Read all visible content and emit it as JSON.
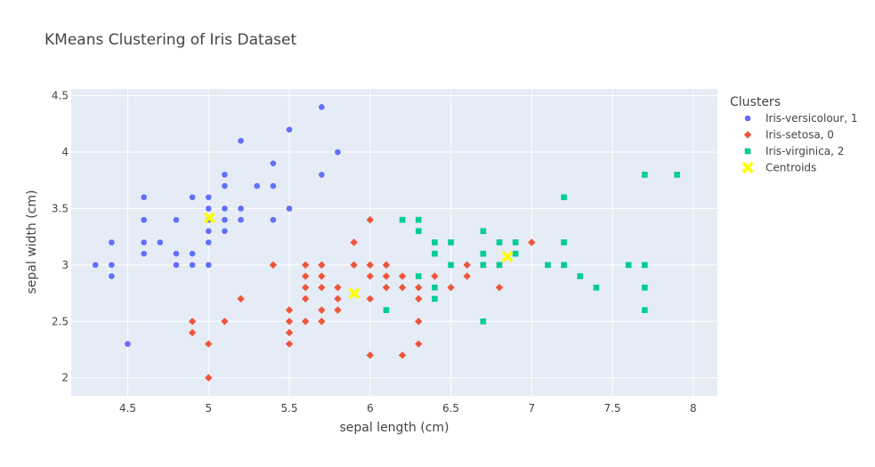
{
  "chart_data": {
    "type": "scatter",
    "title": "KMeans Clustering of Iris Dataset",
    "xlabel": "sepal length (cm)",
    "ylabel": "sepal width (cm)",
    "xlim": [
      4.15,
      8.15
    ],
    "ylim": [
      1.84,
      4.56
    ],
    "x_ticks": [
      4.5,
      5,
      5.5,
      6,
      6.5,
      7,
      7.5,
      8
    ],
    "x_tick_labels": [
      "4.5",
      "5",
      "5.5",
      "6",
      "6.5",
      "7",
      "7.5",
      "8"
    ],
    "y_ticks": [
      2,
      2.5,
      3,
      3.5,
      4,
      4.5
    ],
    "y_tick_labels": [
      "2",
      "2.5",
      "3",
      "3.5",
      "4",
      "4.5"
    ],
    "grid": true,
    "plot_background": "#E5ECF6",
    "legend": {
      "title": "Clusters",
      "placement": "right"
    },
    "series": [
      {
        "name": "Iris-versicolour, 1",
        "marker": "circle",
        "color": "#636EFA",
        "points": [
          [
            4.3,
            3.0
          ],
          [
            4.4,
            3.2
          ],
          [
            4.4,
            3.0
          ],
          [
            4.4,
            2.9
          ],
          [
            4.5,
            2.3
          ],
          [
            4.6,
            3.6
          ],
          [
            4.6,
            3.4
          ],
          [
            4.6,
            3.2
          ],
          [
            4.6,
            3.1
          ],
          [
            4.7,
            3.2
          ],
          [
            4.8,
            3.4
          ],
          [
            4.8,
            3.1
          ],
          [
            4.8,
            3.0
          ],
          [
            4.9,
            3.6
          ],
          [
            4.9,
            3.1
          ],
          [
            4.9,
            3.0
          ],
          [
            5.0,
            3.6
          ],
          [
            5.0,
            3.5
          ],
          [
            5.0,
            3.4
          ],
          [
            5.0,
            3.3
          ],
          [
            5.0,
            3.2
          ],
          [
            5.0,
            3.0
          ],
          [
            5.1,
            3.8
          ],
          [
            5.1,
            3.7
          ],
          [
            5.1,
            3.5
          ],
          [
            5.1,
            3.4
          ],
          [
            5.1,
            3.3
          ],
          [
            5.2,
            4.1
          ],
          [
            5.2,
            3.5
          ],
          [
            5.2,
            3.4
          ],
          [
            5.3,
            3.7
          ],
          [
            5.4,
            3.9
          ],
          [
            5.4,
            3.7
          ],
          [
            5.4,
            3.4
          ],
          [
            5.5,
            4.2
          ],
          [
            5.5,
            3.5
          ],
          [
            5.7,
            4.4
          ],
          [
            5.7,
            3.8
          ],
          [
            5.8,
            4.0
          ]
        ]
      },
      {
        "name": "Iris-setosa, 0",
        "marker": "diamond",
        "color": "#EF553B",
        "points": [
          [
            4.9,
            2.5
          ],
          [
            4.9,
            2.4
          ],
          [
            5.0,
            2.3
          ],
          [
            5.0,
            2.0
          ],
          [
            5.1,
            2.5
          ],
          [
            5.2,
            2.7
          ],
          [
            5.4,
            3.0
          ],
          [
            5.5,
            2.6
          ],
          [
            5.5,
            2.5
          ],
          [
            5.5,
            2.4
          ],
          [
            5.5,
            2.3
          ],
          [
            5.6,
            3.0
          ],
          [
            5.6,
            2.9
          ],
          [
            5.6,
            2.8
          ],
          [
            5.6,
            2.7
          ],
          [
            5.6,
            2.5
          ],
          [
            5.7,
            3.0
          ],
          [
            5.7,
            2.9
          ],
          [
            5.7,
            2.8
          ],
          [
            5.7,
            2.6
          ],
          [
            5.7,
            2.5
          ],
          [
            5.8,
            2.8
          ],
          [
            5.8,
            2.7
          ],
          [
            5.8,
            2.6
          ],
          [
            5.9,
            3.2
          ],
          [
            5.9,
            3.0
          ],
          [
            6.0,
            3.4
          ],
          [
            6.0,
            3.0
          ],
          [
            6.0,
            2.9
          ],
          [
            6.0,
            2.7
          ],
          [
            6.0,
            2.2
          ],
          [
            6.1,
            3.0
          ],
          [
            6.1,
            2.9
          ],
          [
            6.1,
            2.8
          ],
          [
            6.2,
            2.9
          ],
          [
            6.2,
            2.8
          ],
          [
            6.2,
            2.2
          ],
          [
            6.3,
            2.8
          ],
          [
            6.3,
            2.7
          ],
          [
            6.3,
            2.5
          ],
          [
            6.3,
            2.3
          ],
          [
            6.4,
            2.9
          ],
          [
            6.5,
            2.8
          ],
          [
            6.6,
            3.0
          ],
          [
            6.6,
            2.9
          ],
          [
            6.8,
            2.8
          ],
          [
            7.0,
            3.2
          ]
        ]
      },
      {
        "name": "Iris-virginica, 2",
        "marker": "square",
        "color": "#00CC96",
        "points": [
          [
            6.1,
            2.6
          ],
          [
            6.2,
            3.4
          ],
          [
            6.3,
            3.4
          ],
          [
            6.3,
            3.3
          ],
          [
            6.3,
            2.9
          ],
          [
            6.4,
            3.2
          ],
          [
            6.4,
            3.1
          ],
          [
            6.4,
            2.8
          ],
          [
            6.4,
            2.7
          ],
          [
            6.5,
            3.2
          ],
          [
            6.5,
            3.0
          ],
          [
            6.7,
            3.3
          ],
          [
            6.7,
            3.1
          ],
          [
            6.7,
            3.0
          ],
          [
            6.7,
            2.5
          ],
          [
            6.8,
            3.2
          ],
          [
            6.8,
            3.0
          ],
          [
            6.9,
            3.2
          ],
          [
            6.9,
            3.1
          ],
          [
            7.1,
            3.0
          ],
          [
            7.2,
            3.6
          ],
          [
            7.2,
            3.2
          ],
          [
            7.2,
            3.0
          ],
          [
            7.3,
            2.9
          ],
          [
            7.4,
            2.8
          ],
          [
            7.6,
            3.0
          ],
          [
            7.7,
            3.8
          ],
          [
            7.7,
            3.0
          ],
          [
            7.7,
            2.8
          ],
          [
            7.7,
            2.6
          ],
          [
            7.9,
            3.8
          ]
        ]
      },
      {
        "name": "Centroids",
        "marker": "x",
        "color": "#FFFF00",
        "points": [
          [
            5.006,
            3.418
          ],
          [
            5.902,
            2.748
          ],
          [
            6.85,
            3.074
          ]
        ]
      }
    ]
  }
}
